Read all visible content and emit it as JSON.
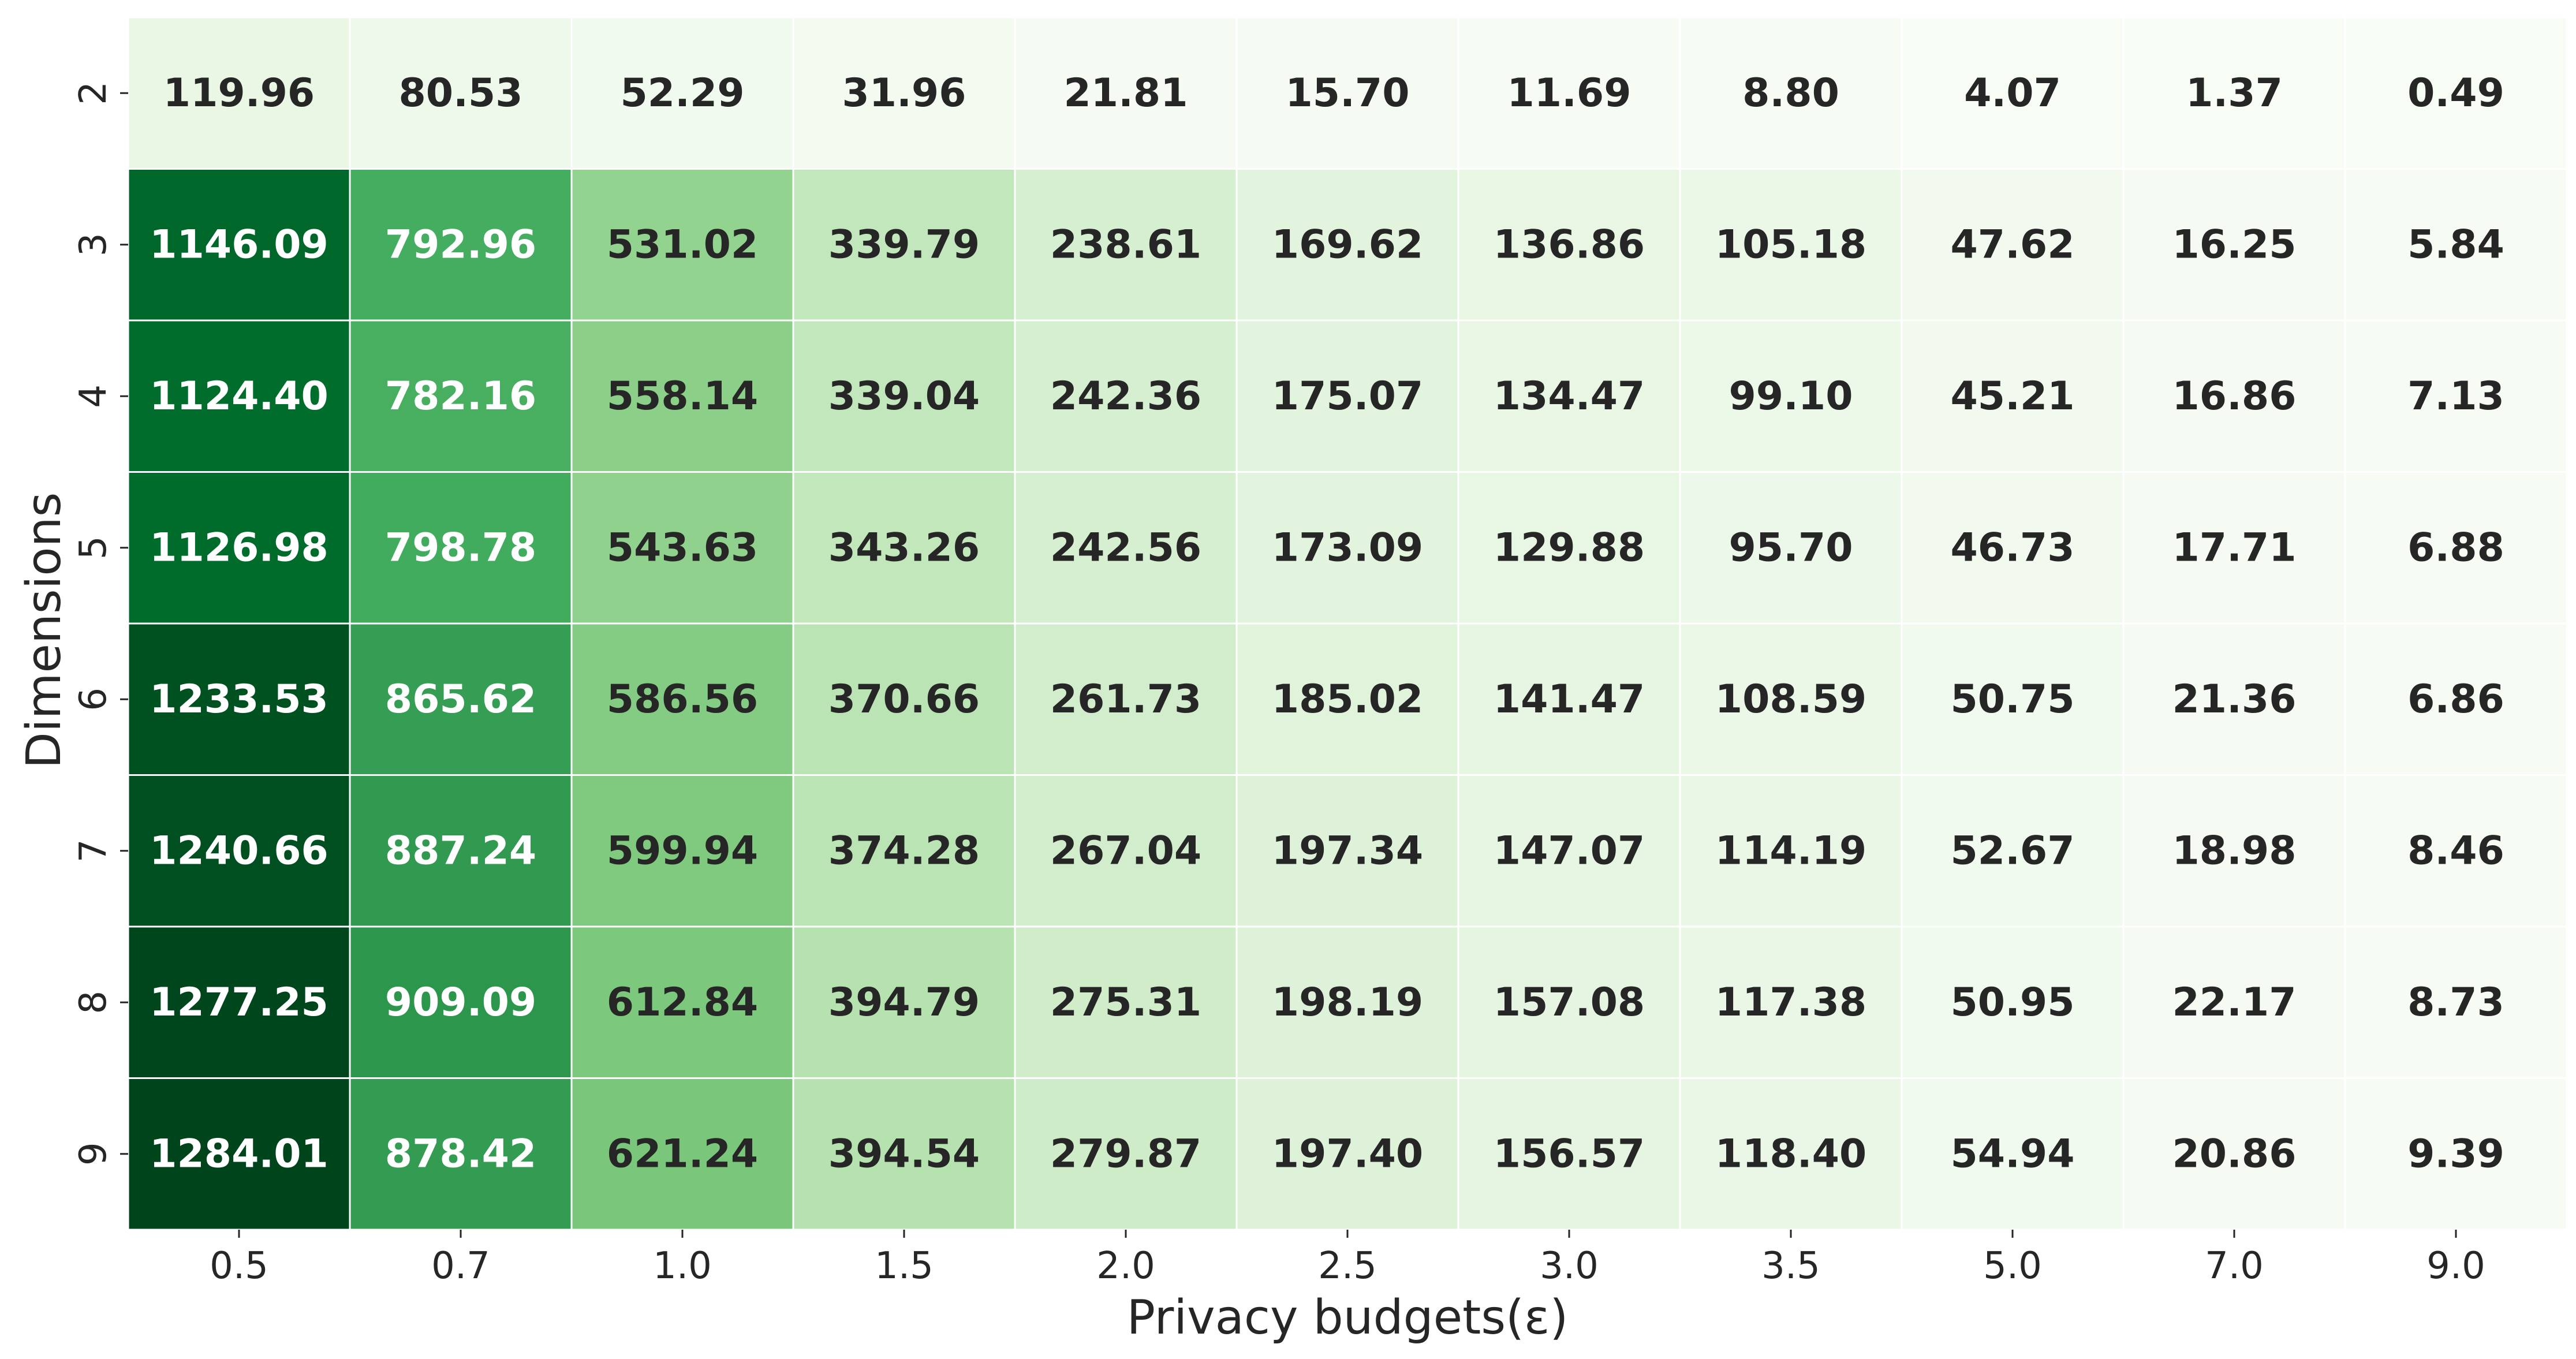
{
  "chart_data": {
    "type": "heatmap",
    "title": "",
    "xlabel": "Privacy budgets(ε)",
    "ylabel": "Dimensions",
    "x_categories": [
      "0.5",
      "0.7",
      "1.0",
      "1.5",
      "2.0",
      "2.5",
      "3.0",
      "3.5",
      "5.0",
      "7.0",
      "9.0"
    ],
    "y_categories": [
      "2",
      "3",
      "4",
      "5",
      "6",
      "7",
      "8",
      "9"
    ],
    "values": [
      [
        119.96,
        80.53,
        52.29,
        31.96,
        21.81,
        15.7,
        11.69,
        8.8,
        4.07,
        1.37,
        0.49
      ],
      [
        1146.09,
        792.96,
        531.02,
        339.79,
        238.61,
        169.62,
        136.86,
        105.18,
        47.62,
        16.25,
        5.84
      ],
      [
        1124.4,
        782.16,
        558.14,
        339.04,
        242.36,
        175.07,
        134.47,
        99.1,
        45.21,
        16.86,
        7.13
      ],
      [
        1126.98,
        798.78,
        543.63,
        343.26,
        242.56,
        173.09,
        129.88,
        95.7,
        46.73,
        17.71,
        6.88
      ],
      [
        1233.53,
        865.62,
        586.56,
        370.66,
        261.73,
        185.02,
        141.47,
        108.59,
        50.75,
        21.36,
        6.86
      ],
      [
        1240.66,
        887.24,
        599.94,
        374.28,
        267.04,
        197.34,
        147.07,
        114.19,
        52.67,
        18.98,
        8.46
      ],
      [
        1277.25,
        909.09,
        612.84,
        394.79,
        275.31,
        198.19,
        157.08,
        117.38,
        50.95,
        22.17,
        8.73
      ],
      [
        1284.01,
        878.42,
        621.24,
        394.54,
        279.87,
        197.4,
        156.57,
        118.4,
        54.94,
        20.86,
        9.39
      ]
    ],
    "colormap": "Greens",
    "vmin": 0.49,
    "vmax": 1284.01,
    "cell_border_color": "#ffffff",
    "dark_text_color": "#262626",
    "light_text_color": "#ffffff",
    "legend": "none",
    "grid": false
  }
}
